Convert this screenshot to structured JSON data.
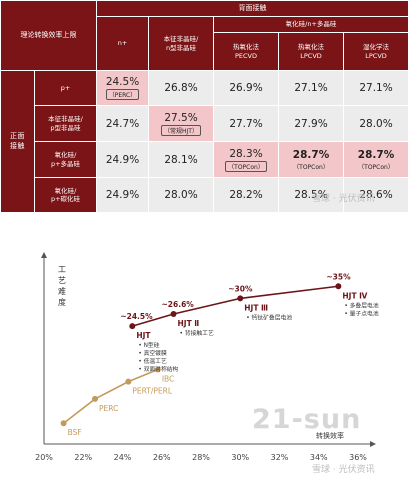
{
  "table": {
    "corner_label": "理论转换效率上限",
    "back_header": "背面接触",
    "col_n": "n+",
    "col_intrinsic": [
      "本征非晶硅/",
      "n型非晶硅"
    ],
    "col_poly_group": "氧化硅/n+多晶硅",
    "col_sub": [
      {
        "main": "热氧化法",
        "sub": "PECVD"
      },
      {
        "main": "热氧化法",
        "sub": "LPCVD"
      },
      {
        "main": "湿化学法",
        "sub": "LPCVD"
      }
    ],
    "front_label": [
      "正面",
      "接触"
    ],
    "rows": [
      {
        "label": [
          "p+"
        ],
        "cells": [
          {
            "value": "24.5%",
            "note": "（PERC）",
            "note_style": "boxed",
            "highlight": true
          },
          {
            "value": "26.8%"
          },
          {
            "value": "26.9%"
          },
          {
            "value": "27.1%"
          },
          {
            "value": "27.1%"
          }
        ]
      },
      {
        "label": [
          "本征非晶硅/",
          "p型非晶硅"
        ],
        "cells": [
          {
            "value": "24.7%"
          },
          {
            "value": "27.5%",
            "note": "（常规HJT）",
            "note_style": "boxed",
            "highlight": true
          },
          {
            "value": "27.7%"
          },
          {
            "value": "27.9%"
          },
          {
            "value": "28.0%"
          }
        ]
      },
      {
        "label": [
          "氧化硅/",
          "p+多晶硅"
        ],
        "cells": [
          {
            "value": "24.9%"
          },
          {
            "value": "28.1%"
          },
          {
            "value": "28.3%",
            "note": "（TOPCon）",
            "note_style": "boxed",
            "highlight": true
          },
          {
            "value": "28.7%",
            "note": "（TOPCon）",
            "note_style": "plain",
            "highlight": true,
            "bold": true
          },
          {
            "value": "28.7%",
            "note": "（TOPCon）",
            "note_style": "plain",
            "highlight": true,
            "bold": true
          }
        ]
      },
      {
        "label": [
          "氧化硅/",
          "p+碳化硅"
        ],
        "cells": [
          {
            "value": "24.9%"
          },
          {
            "value": "28.0%"
          },
          {
            "value": "28.2%"
          },
          {
            "value": "28.5%"
          },
          {
            "value": "28.6%"
          }
        ]
      }
    ],
    "watermark": "雪球 · 光伏资讯"
  },
  "chart_data": {
    "type": "line",
    "ylabel": "工艺难度",
    "xlabel": "转换效率",
    "x_ticks": [
      "20%",
      "22%",
      "24%",
      "26%",
      "28%",
      "30%",
      "32%",
      "34%",
      "36%"
    ],
    "xlim": [
      20,
      36
    ],
    "colors": {
      "base": "#c49a5c",
      "hjt": "#6b1519",
      "axis": "#555555"
    },
    "series": [
      {
        "points": [
          {
            "x": 21.0,
            "y": 1.2,
            "label": "BSF"
          },
          {
            "x": 22.6,
            "y": 2.6,
            "label": "PERC"
          },
          {
            "x": 24.3,
            "y": 3.6,
            "label": "PERT/PERL"
          },
          {
            "x": 25.8,
            "y": 4.3,
            "label": "IBC"
          }
        ]
      },
      {
        "points": [
          {
            "x": 24.5,
            "y": 6.8,
            "value_label": "~24.5%",
            "name": "HJT",
            "desc": [
              "N型硅",
              "真空镀膜",
              "低温工艺",
              "双面对称结构"
            ]
          },
          {
            "x": 26.6,
            "y": 7.5,
            "value_label": "~26.6%",
            "name": "HJT Ⅱ",
            "desc": [
              "背接触工艺"
            ]
          },
          {
            "x": 30.0,
            "y": 8.4,
            "value_label": "~30%",
            "name": "HJT Ⅲ",
            "desc": [
              "钙钛矿叠层电池"
            ]
          },
          {
            "x": 35.0,
            "y": 9.1,
            "value_label": "~35%",
            "name": "HJT Ⅳ",
            "desc": [
              "多叠层电池",
              "量子点电池"
            ]
          }
        ]
      }
    ],
    "ylim": [
      0,
      10.5
    ]
  },
  "watermarks": {
    "big": "21-sun",
    "bottom": "雪球 · 光伏资讯"
  }
}
